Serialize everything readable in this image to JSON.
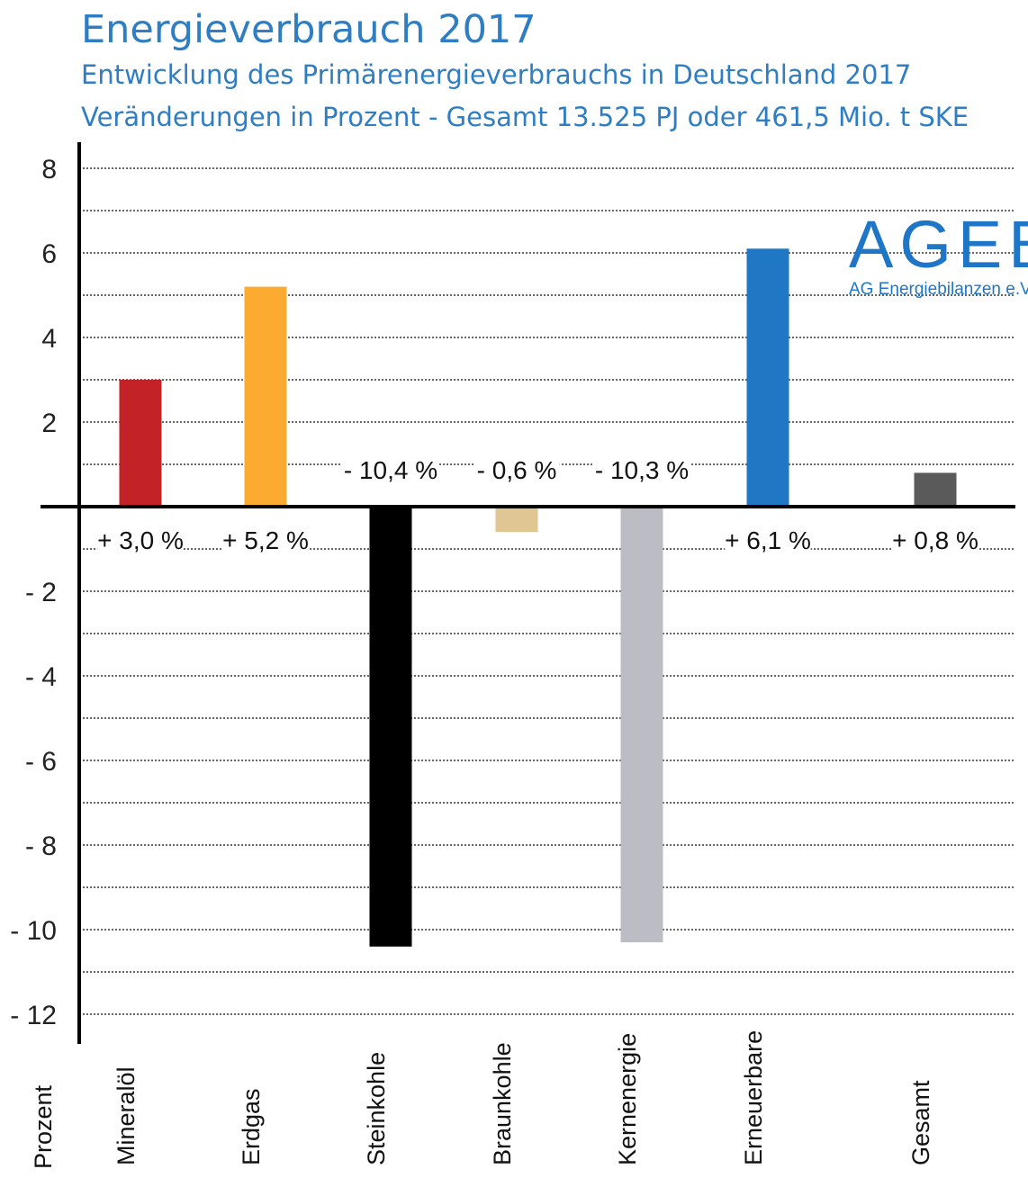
{
  "header": {
    "title": "Energieverbrauch 2017",
    "subtitle1": "Entwicklung des Primärenergieverbrauchs in Deutschland 2017",
    "subtitle2": "Veränderungen in Prozent - Gesamt 13.525 PJ oder 461,5 Mio. t SKE"
  },
  "logo": {
    "main": "AGEB",
    "sub": "AG Energiebilanzen e.V."
  },
  "colors": {
    "title": "#2f7dc3",
    "logo": "#2076c6"
  },
  "chart_data": {
    "type": "bar",
    "ylabel": "Prozent",
    "ylim": [
      -12,
      8
    ],
    "yticks": [
      8,
      6,
      4,
      2,
      -2,
      -4,
      -6,
      -8,
      -10,
      -12
    ],
    "ytick_labels": [
      "8",
      "6",
      "4",
      "2",
      "- 2",
      "- 4",
      "- 6",
      "- 8",
      "- 10",
      "- 12"
    ],
    "grid": true,
    "categories": [
      "Mineralöl",
      "Erdgas",
      "Steinkohle",
      "Braunkohle",
      "Kernenergie",
      "Erneuerbare",
      "Gesamt"
    ],
    "values": [
      3.0,
      5.2,
      -10.4,
      -0.6,
      -10.3,
      6.1,
      0.8
    ],
    "data_labels": [
      "+ 3,0 %",
      "+ 5,2 %",
      "- 10,4 %",
      "- 0,6 %",
      "- 10,3 %",
      "+ 6,1 %",
      "+ 0,8 %"
    ],
    "colors": [
      "#c32226",
      "#fbab2f",
      "#000000",
      "#dfc692",
      "#bcbcc4",
      "#2077c4",
      "#5a5a5a"
    ]
  }
}
